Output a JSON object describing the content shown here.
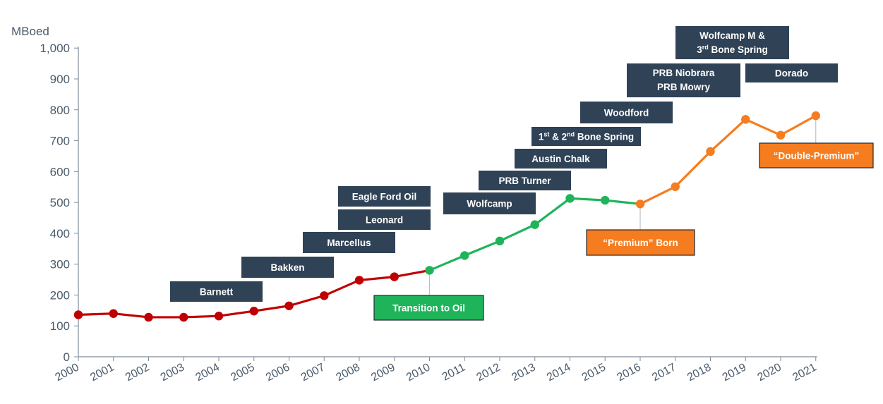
{
  "chart_data": {
    "type": "line",
    "title": "",
    "ylabel": "MBoed",
    "xlabel": "",
    "ylim": [
      0,
      1000
    ],
    "yticks": [
      "0",
      "100",
      "200",
      "300",
      "400",
      "500",
      "600",
      "700",
      "800",
      "900",
      "1,000"
    ],
    "x": [
      "2000",
      "2001",
      "2002",
      "2003",
      "2004",
      "2005",
      "2006",
      "2007",
      "2008",
      "2009",
      "2010",
      "2011",
      "2012",
      "2013",
      "2014",
      "2015",
      "2016",
      "2017",
      "2018",
      "2019",
      "2020",
      "2021"
    ],
    "values": [
      136,
      140,
      128,
      128,
      132,
      148,
      165,
      198,
      248,
      259,
      280,
      328,
      375,
      428,
      513,
      507,
      495,
      551,
      665,
      769,
      718,
      781
    ],
    "segments": [
      {
        "name": "gas",
        "from": 0,
        "to": 10,
        "color": "#c00000"
      },
      {
        "name": "oil",
        "from": 10,
        "to": 16,
        "color": "#1fb45a"
      },
      {
        "name": "premium",
        "from": 16,
        "to": 21,
        "color": "#f57c1f"
      }
    ],
    "play_labels": [
      {
        "id": "barnett",
        "parts": [
          {
            "t": "Barnett"
          }
        ]
      },
      {
        "id": "bakken",
        "parts": [
          {
            "t": "Bakken"
          }
        ]
      },
      {
        "id": "marcellus",
        "parts": [
          {
            "t": "Marcellus"
          }
        ]
      },
      {
        "id": "leonard",
        "parts": [
          {
            "t": "Leonard"
          }
        ]
      },
      {
        "id": "eagle-ford-oil",
        "parts": [
          {
            "t": "Eagle Ford Oil"
          }
        ]
      },
      {
        "id": "wolfcamp",
        "parts": [
          {
            "t": "Wolfcamp"
          }
        ]
      },
      {
        "id": "prb-turner",
        "parts": [
          {
            "t": "PRB Turner"
          }
        ]
      },
      {
        "id": "austin-chalk",
        "parts": [
          {
            "t": "Austin Chalk"
          }
        ]
      },
      {
        "id": "bone-spring",
        "parts": [
          {
            "t": "1"
          },
          {
            "t": "st",
            "sup": true
          },
          {
            "t": " & 2"
          },
          {
            "t": "nd",
            "sup": true
          },
          {
            "t": " Bone Spring"
          }
        ]
      },
      {
        "id": "woodford",
        "parts": [
          {
            "t": "Woodford"
          }
        ]
      },
      {
        "id": "prb-niobrara-mowry",
        "lines": [
          [
            {
              "t": "PRB Niobrara"
            }
          ],
          [
            {
              "t": "PRB Mowry"
            }
          ]
        ]
      },
      {
        "id": "wolfcamp-m-bone-spring",
        "lines": [
          [
            {
              "t": "Wolfcamp M &"
            }
          ],
          [
            {
              "t": "3"
            },
            {
              "t": "rd",
              "sup": true
            },
            {
              "t": " Bone Spring"
            }
          ]
        ]
      },
      {
        "id": "dorado",
        "parts": [
          {
            "t": "Dorado"
          }
        ]
      }
    ],
    "annotations": [
      {
        "id": "transition-to-oil",
        "text": "Transition to Oil",
        "year": "2010",
        "color": "#1fb45a"
      },
      {
        "id": "premium-born",
        "text": "“Premium” Born",
        "year": "2016",
        "color": "#f57c1f"
      },
      {
        "id": "double-premium",
        "text": "“Double-Premium”",
        "year": "2021",
        "color": "#f57c1f"
      }
    ],
    "colors": {
      "axis": "#7f8c99",
      "label_box": "#2f4256",
      "tick_text": "#4a5a6a"
    }
  }
}
